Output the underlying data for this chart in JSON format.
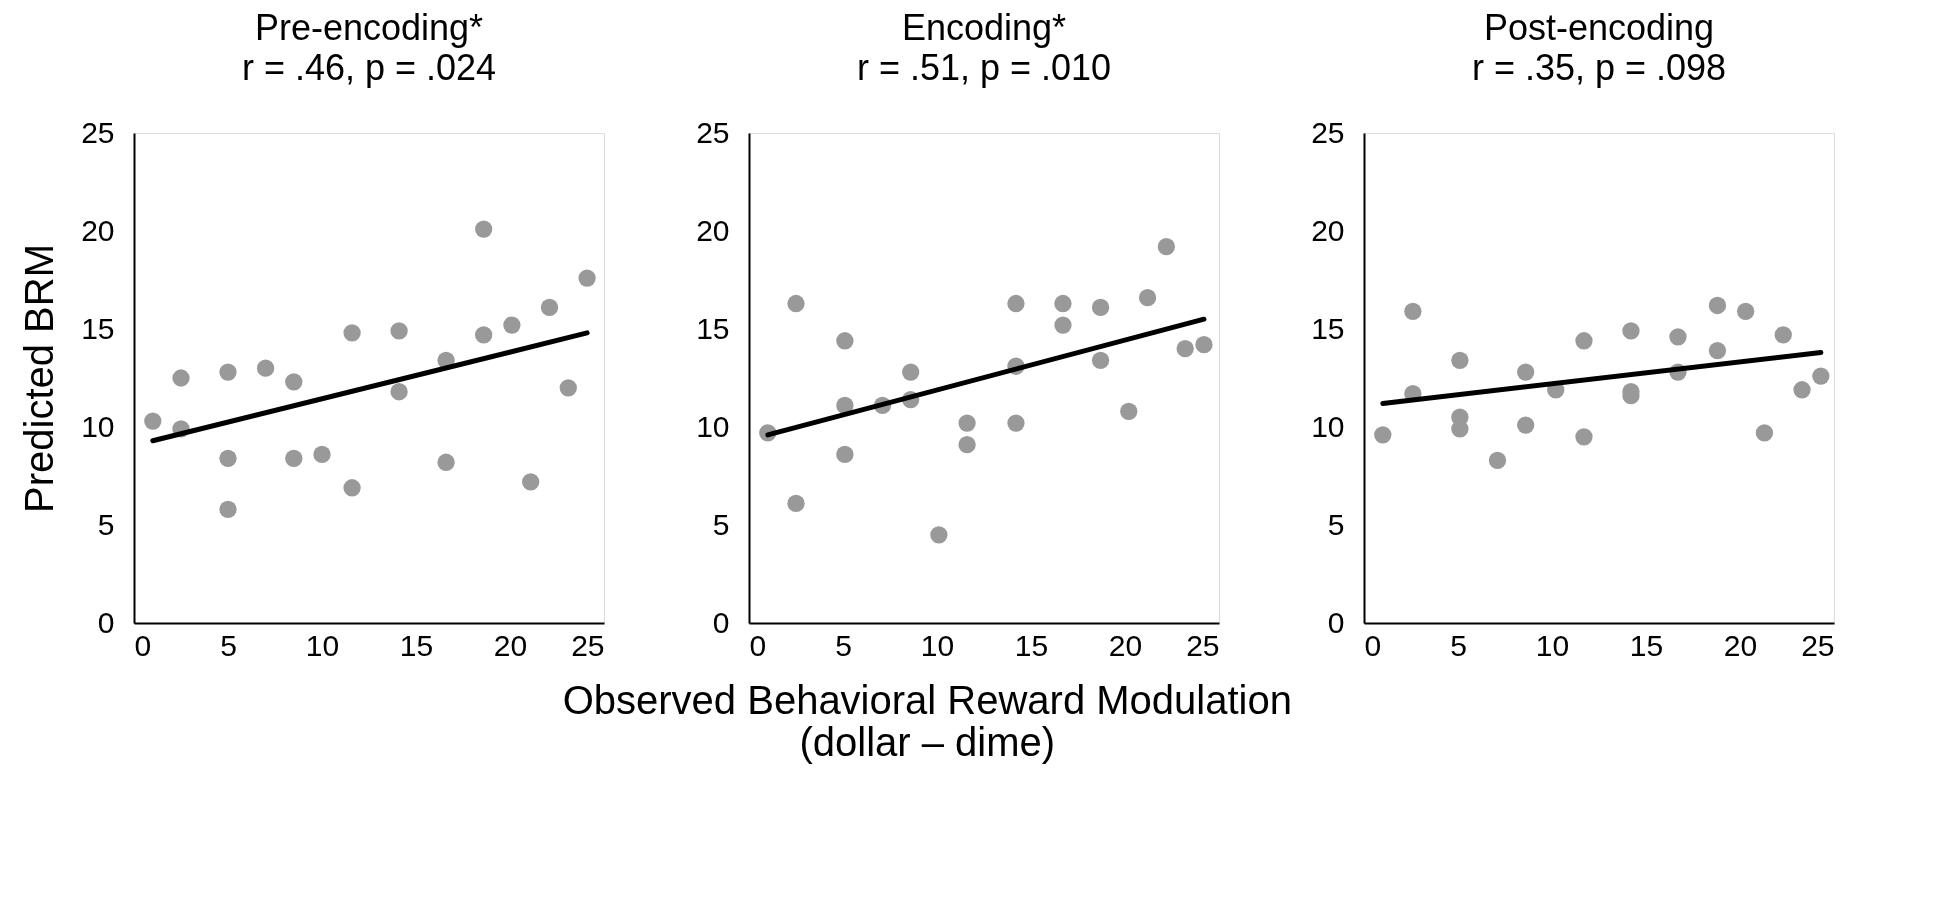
{
  "chart_data": [
    {
      "type": "scatter",
      "title": "Pre-encoding*",
      "subtitle": "r = .46, p = .024",
      "ylabel": "Predicted BRM",
      "xlim": [
        0,
        25
      ],
      "ylim": [
        0,
        25
      ],
      "xticks": [
        0,
        5,
        10,
        15,
        20,
        25
      ],
      "yticks": [
        0,
        5,
        10,
        15,
        20,
        25
      ],
      "grid": false,
      "series": [
        {
          "marker": "circle",
          "color": "#999999",
          "x": [
            1.0,
            2.5,
            2.5,
            5.0,
            5.0,
            5.0,
            7.0,
            8.5,
            8.5,
            10.0,
            11.6,
            11.6,
            14.1,
            14.1,
            16.6,
            16.6,
            18.6,
            18.6,
            20.1,
            21.1,
            22.1,
            23.1,
            24.1
          ],
          "values": [
            10.3,
            12.5,
            9.9,
            12.8,
            8.4,
            5.8,
            13.0,
            12.3,
            8.4,
            8.6,
            14.8,
            6.9,
            14.9,
            11.8,
            13.4,
            8.2,
            20.1,
            14.7,
            15.2,
            7.2,
            16.1,
            12.0,
            17.6
          ]
        },
        {
          "type": "line",
          "marker": "none",
          "color": "#000000",
          "x": [
            1.0,
            24.1
          ],
          "values": [
            9.3,
            14.8
          ]
        }
      ]
    },
    {
      "type": "scatter",
      "title": "Encoding*",
      "subtitle": "r = .51, p = .010",
      "xlabel": "Observed Behavioral Reward Modulation\n(dollar – dime)",
      "xlim": [
        0,
        25
      ],
      "ylim": [
        0,
        25
      ],
      "xticks": [
        0,
        5,
        10,
        15,
        20,
        25
      ],
      "yticks": [
        0,
        5,
        10,
        15,
        20,
        25
      ],
      "grid": false,
      "series": [
        {
          "marker": "circle",
          "color": "#999999",
          "x": [
            1.0,
            2.5,
            2.5,
            5.1,
            5.1,
            5.1,
            7.1,
            8.6,
            8.6,
            10.1,
            11.6,
            11.6,
            14.2,
            14.2,
            14.2,
            16.7,
            16.7,
            18.7,
            18.7,
            20.2,
            21.2,
            22.2,
            23.2,
            24.2
          ],
          "values": [
            9.7,
            16.3,
            6.1,
            14.4,
            11.1,
            8.6,
            11.1,
            12.8,
            11.4,
            4.5,
            10.2,
            9.1,
            16.3,
            13.1,
            10.2,
            16.3,
            15.2,
            16.1,
            13.4,
            10.8,
            16.6,
            19.2,
            14.0,
            14.2
          ]
        },
        {
          "type": "line",
          "marker": "none",
          "color": "#000000",
          "x": [
            1.0,
            24.2
          ],
          "values": [
            9.6,
            15.5
          ]
        }
      ]
    },
    {
      "type": "scatter",
      "title": "Post-encoding",
      "subtitle": "r = .35, p = .098",
      "xlim": [
        0,
        25
      ],
      "ylim": [
        0,
        25
      ],
      "xticks": [
        0,
        5,
        10,
        15,
        20,
        25
      ],
      "yticks": [
        0,
        5,
        10,
        15,
        20,
        25
      ],
      "grid": false,
      "series": [
        {
          "marker": "circle",
          "color": "#999999",
          "x": [
            1.0,
            2.6,
            2.6,
            5.1,
            5.1,
            5.1,
            7.1,
            8.6,
            8.6,
            10.2,
            11.7,
            11.7,
            14.2,
            14.2,
            14.2,
            16.7,
            16.7,
            18.8,
            18.8,
            20.3,
            21.3,
            22.3,
            23.3,
            24.3
          ],
          "values": [
            9.6,
            15.9,
            11.7,
            13.4,
            10.5,
            9.9,
            8.3,
            12.8,
            10.1,
            11.9,
            14.4,
            9.5,
            14.9,
            11.8,
            11.6,
            14.6,
            12.8,
            16.2,
            13.9,
            15.9,
            9.7,
            14.7,
            11.9,
            12.6
          ]
        },
        {
          "type": "line",
          "marker": "none",
          "color": "#000000",
          "x": [
            1.0,
            24.3
          ],
          "values": [
            11.2,
            13.8
          ]
        }
      ]
    }
  ]
}
